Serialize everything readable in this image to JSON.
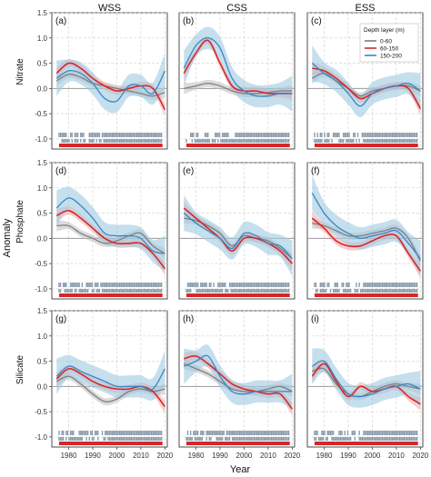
{
  "figure": {
    "xlabel": "Year",
    "ylabel": "Anomaly",
    "columns": [
      "WSS",
      "CSS",
      "ESS"
    ],
    "rows": [
      "Nitrate",
      "Phosphate",
      "Silicate"
    ],
    "legend_title": "Depth layer (m)",
    "colors": {
      "0-60": "#7f7f7f",
      "60-150": "#d62728",
      "150-200": "#3a86c8",
      "band_blue": "#9ecae1",
      "band_red": "#f4a6a6",
      "band_grey": "#bdbdbd"
    }
  },
  "chart_data": [
    {
      "type": "line",
      "panel": "(a)",
      "row": "Nitrate",
      "column": "WSS",
      "x": [
        1975,
        1980,
        1985,
        1990,
        1995,
        2000,
        2005,
        2010,
        2015,
        2020
      ],
      "ylim": [
        -1.2,
        1.5
      ],
      "yticks": [
        -1.0,
        -0.5,
        0.0,
        0.5,
        1.0,
        1.5
      ],
      "xticks": [
        1980,
        1990,
        2000,
        2010,
        2020
      ],
      "grid": true,
      "ribbons": true,
      "series": [
        {
          "name": "0-60",
          "values": [
            0.15,
            0.28,
            0.22,
            0.1,
            0.05,
            0.0,
            -0.05,
            -0.1,
            -0.15,
            -0.08
          ]
        },
        {
          "name": "60-150",
          "values": [
            0.3,
            0.5,
            0.4,
            0.2,
            0.05,
            -0.05,
            0.0,
            0.05,
            0.0,
            -0.42
          ]
        },
        {
          "name": "150-200",
          "values": [
            0.2,
            0.35,
            0.3,
            0.1,
            -0.2,
            -0.25,
            0.05,
            0.05,
            -0.1,
            0.35
          ]
        }
      ]
    },
    {
      "type": "line",
      "panel": "(b)",
      "row": "Nitrate",
      "column": "CSS",
      "x": [
        1975,
        1980,
        1985,
        1990,
        1995,
        2000,
        2005,
        2010,
        2015,
        2020
      ],
      "ylim": [
        -1.2,
        1.5
      ],
      "yticks": [
        -1.0,
        -0.5,
        0.0,
        0.5,
        1.0,
        1.5
      ],
      "xticks": [
        1980,
        1990,
        2000,
        2010,
        2020
      ],
      "grid": true,
      "ribbons": true,
      "series": [
        {
          "name": "0-60",
          "values": [
            0.0,
            0.05,
            0.1,
            0.05,
            -0.05,
            -0.1,
            -0.1,
            -0.08,
            -0.05,
            -0.05
          ]
        },
        {
          "name": "60-150",
          "values": [
            0.3,
            0.7,
            0.95,
            0.5,
            0.05,
            -0.05,
            -0.05,
            -0.1,
            -0.1,
            -0.1
          ]
        },
        {
          "name": "150-200",
          "values": [
            0.4,
            0.85,
            1.0,
            0.8,
            0.2,
            -0.05,
            -0.15,
            -0.15,
            -0.1,
            -0.1
          ]
        }
      ]
    },
    {
      "type": "line",
      "panel": "(c)",
      "row": "Nitrate",
      "column": "ESS",
      "x": [
        1975,
        1980,
        1985,
        1990,
        1995,
        2000,
        2005,
        2010,
        2015,
        2020
      ],
      "ylim": [
        -1.2,
        1.5
      ],
      "yticks": [
        -1.0,
        -0.5,
        0.0,
        0.5,
        1.0,
        1.5
      ],
      "xticks": [
        1980,
        1990,
        2000,
        2010,
        2020
      ],
      "grid": true,
      "ribbons": true,
      "series": [
        {
          "name": "0-60",
          "values": [
            0.2,
            0.3,
            0.15,
            0.0,
            -0.15,
            -0.05,
            0.0,
            0.05,
            0.05,
            -0.05
          ]
        },
        {
          "name": "60-150",
          "values": [
            0.4,
            0.35,
            0.2,
            0.0,
            -0.2,
            -0.1,
            0.0,
            0.05,
            0.0,
            -0.4
          ]
        },
        {
          "name": "150-200",
          "values": [
            0.5,
            0.3,
            0.15,
            -0.1,
            -0.35,
            -0.1,
            0.0,
            0.05,
            0.1,
            -0.05
          ]
        }
      ]
    },
    {
      "type": "line",
      "panel": "(d)",
      "row": "Phosphate",
      "column": "WSS",
      "x": [
        1975,
        1980,
        1985,
        1990,
        1995,
        2000,
        2005,
        2010,
        2015,
        2020
      ],
      "ylim": [
        -1.2,
        1.5
      ],
      "yticks": [
        -1.0,
        -0.5,
        0.0,
        0.5,
        1.0,
        1.5
      ],
      "xticks": [
        1980,
        1990,
        2000,
        2010,
        2020
      ],
      "grid": true,
      "ribbons": true,
      "series": [
        {
          "name": "0-60",
          "values": [
            0.25,
            0.25,
            0.1,
            0.0,
            -0.1,
            -0.05,
            0.05,
            0.1,
            -0.15,
            -0.3
          ]
        },
        {
          "name": "60-150",
          "values": [
            0.45,
            0.55,
            0.4,
            0.2,
            0.0,
            -0.1,
            -0.1,
            -0.1,
            -0.3,
            -0.6
          ]
        },
        {
          "name": "150-200",
          "values": [
            0.6,
            0.8,
            0.65,
            0.4,
            0.1,
            0.05,
            0.05,
            0.0,
            -0.25,
            -0.3
          ]
        }
      ]
    },
    {
      "type": "line",
      "panel": "(e)",
      "row": "Phosphate",
      "column": "CSS",
      "x": [
        1975,
        1980,
        1985,
        1990,
        1995,
        2000,
        2005,
        2010,
        2015,
        2020
      ],
      "ylim": [
        -1.2,
        1.5
      ],
      "yticks": [
        -1.0,
        -0.5,
        0.0,
        0.5,
        1.0,
        1.5
      ],
      "xticks": [
        1980,
        1990,
        2000,
        2010,
        2020
      ],
      "grid": true,
      "ribbons": true,
      "series": [
        {
          "name": "0-60",
          "values": [
            0.4,
            0.35,
            0.25,
            0.1,
            -0.15,
            0.05,
            0.0,
            -0.05,
            -0.2,
            -0.4
          ]
        },
        {
          "name": "60-150",
          "values": [
            0.6,
            0.4,
            0.2,
            0.0,
            -0.25,
            0.0,
            0.0,
            -0.1,
            -0.25,
            -0.5
          ]
        },
        {
          "name": "150-200",
          "values": [
            0.5,
            0.3,
            0.15,
            0.0,
            -0.2,
            0.1,
            0.05,
            -0.1,
            -0.15,
            -0.4
          ]
        }
      ]
    },
    {
      "type": "line",
      "panel": "(f)",
      "row": "Phosphate",
      "column": "ESS",
      "x": [
        1975,
        1980,
        1985,
        1990,
        1995,
        2000,
        2005,
        2010,
        2015,
        2020
      ],
      "ylim": [
        -1.2,
        1.5
      ],
      "yticks": [
        -1.0,
        -0.5,
        0.0,
        0.5,
        1.0,
        1.5
      ],
      "xticks": [
        1980,
        1990,
        2000,
        2010,
        2020
      ],
      "grid": true,
      "ribbons": true,
      "series": [
        {
          "name": "0-60",
          "values": [
            0.3,
            0.25,
            0.15,
            0.05,
            0.05,
            0.1,
            0.15,
            0.2,
            0.0,
            -0.45
          ]
        },
        {
          "name": "60-150",
          "values": [
            0.4,
            0.2,
            -0.05,
            -0.15,
            -0.15,
            -0.05,
            0.05,
            0.05,
            -0.3,
            -0.65
          ]
        },
        {
          "name": "150-200",
          "values": [
            0.9,
            0.5,
            0.25,
            0.1,
            0.0,
            0.05,
            0.1,
            0.15,
            -0.1,
            -0.4
          ]
        }
      ]
    },
    {
      "type": "line",
      "panel": "(g)",
      "row": "Silicate",
      "column": "WSS",
      "x": [
        1975,
        1980,
        1985,
        1990,
        1995,
        2000,
        2005,
        2010,
        2015,
        2020
      ],
      "ylim": [
        -1.2,
        1.5
      ],
      "yticks": [
        -1.0,
        -0.5,
        0.0,
        0.5,
        1.0,
        1.5
      ],
      "xticks": [
        1980,
        1990,
        2000,
        2010,
        2020
      ],
      "grid": true,
      "ribbons": true,
      "series": [
        {
          "name": "0-60",
          "values": [
            0.1,
            0.2,
            0.05,
            -0.15,
            -0.3,
            -0.25,
            -0.1,
            -0.05,
            -0.1,
            -0.05
          ]
        },
        {
          "name": "60-150",
          "values": [
            0.15,
            0.35,
            0.25,
            0.1,
            0.0,
            -0.05,
            -0.05,
            0.0,
            -0.1,
            -0.4
          ]
        },
        {
          "name": "150-200",
          "values": [
            0.2,
            0.4,
            0.3,
            0.2,
            0.1,
            0.0,
            0.0,
            0.0,
            -0.05,
            0.35
          ]
        }
      ]
    },
    {
      "type": "line",
      "panel": "(h)",
      "row": "Silicate",
      "column": "CSS",
      "x": [
        1975,
        1980,
        1985,
        1990,
        1995,
        2000,
        2005,
        2010,
        2015,
        2020
      ],
      "ylim": [
        -1.2,
        1.5
      ],
      "yticks": [
        -1.0,
        -0.5,
        0.0,
        0.5,
        1.0,
        1.5
      ],
      "xticks": [
        1980,
        1990,
        2000,
        2010,
        2020
      ],
      "grid": true,
      "ribbons": true,
      "series": [
        {
          "name": "0-60",
          "values": [
            0.45,
            0.35,
            0.25,
            0.1,
            -0.05,
            -0.1,
            -0.1,
            -0.05,
            0.0,
            -0.1
          ]
        },
        {
          "name": "60-150",
          "values": [
            0.55,
            0.6,
            0.45,
            0.25,
            0.05,
            -0.05,
            -0.1,
            -0.15,
            -0.15,
            -0.45
          ]
        },
        {
          "name": "150-200",
          "values": [
            0.4,
            0.5,
            0.6,
            0.2,
            -0.1,
            -0.15,
            -0.1,
            -0.1,
            -0.1,
            -0.1
          ]
        }
      ]
    },
    {
      "type": "line",
      "panel": "(i)",
      "row": "Silicate",
      "column": "ESS",
      "x": [
        1975,
        1980,
        1985,
        1990,
        1995,
        2000,
        2005,
        2010,
        2015,
        2020
      ],
      "ylim": [
        -1.2,
        1.5
      ],
      "yticks": [
        -1.0,
        -0.5,
        0.0,
        0.5,
        1.0,
        1.5
      ],
      "xticks": [
        1980,
        1990,
        2000,
        2010,
        2020
      ],
      "grid": true,
      "ribbons": true,
      "series": [
        {
          "name": "0-60",
          "values": [
            0.3,
            0.35,
            0.05,
            -0.15,
            -0.2,
            -0.1,
            0.0,
            0.05,
            0.0,
            -0.05
          ]
        },
        {
          "name": "60-150",
          "values": [
            0.2,
            0.45,
            0.1,
            -0.2,
            0.0,
            -0.1,
            -0.05,
            0.0,
            -0.2,
            -0.35
          ]
        },
        {
          "name": "150-200",
          "values": [
            0.4,
            0.5,
            0.15,
            -0.15,
            -0.2,
            -0.15,
            -0.05,
            0.0,
            0.05,
            -0.05
          ]
        }
      ]
    }
  ]
}
